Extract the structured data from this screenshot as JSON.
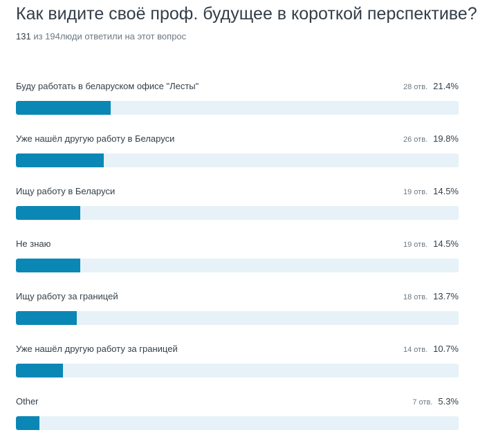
{
  "question": {
    "title": "Как видите своё проф. будущее в короткой перспективе?",
    "answered": "131",
    "answered_text": " из 194люди ответили на этот вопрос"
  },
  "chart_data": {
    "type": "bar",
    "orientation": "horizontal",
    "title": "Как видите своё проф. будущее в короткой перспективе?",
    "xlim": [
      0,
      100
    ],
    "categories": [
      "Буду работать в беларуском офисе \"Лесты\"",
      "Уже нашёл другую работу в Беларуси",
      "Ищу работу в Беларуси",
      "Не знаю",
      "Ищу работу за границей",
      "Уже нашёл другую работу за границей",
      "Other"
    ],
    "values": [
      21.4,
      19.8,
      14.5,
      14.5,
      13.7,
      10.7,
      5.3
    ],
    "counts": [
      28,
      26,
      19,
      19,
      18,
      14,
      7
    ],
    "count_labels": [
      "28 отв.",
      "26 отв.",
      "19 отв.",
      "19 отв.",
      "18 отв.",
      "14 отв.",
      "7 отв."
    ],
    "percent_labels": [
      "21.4%",
      "19.8%",
      "14.5%",
      "14.5%",
      "13.7%",
      "10.7%",
      "5.3%"
    ]
  },
  "colors": {
    "bar_fill": "#0b87b5",
    "bar_track": "#e6f2f7"
  }
}
